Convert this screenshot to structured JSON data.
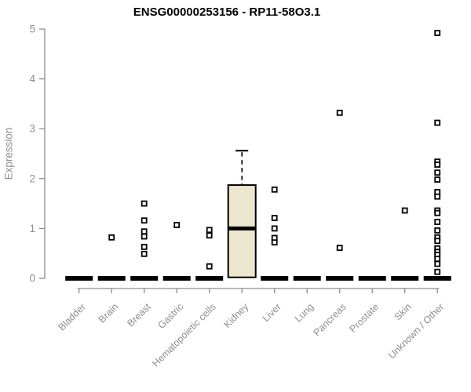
{
  "chart_data": {
    "type": "boxplot",
    "title": "ENSG00000253156 - RP11-58O3.1",
    "xlabel": "",
    "ylabel": "Expression",
    "ylim": [
      0,
      5
    ],
    "yticks": [
      0,
      1,
      2,
      3,
      4,
      5
    ],
    "grid": false,
    "legend": false,
    "categories": [
      "Bladder",
      "Brain",
      "Breast",
      "Gastric",
      "Hematopoietic cells",
      "Kidney",
      "Liver",
      "Lung",
      "Pancreas",
      "Prostate",
      "Skin",
      "Unknown / Other"
    ],
    "series": [
      {
        "category": "Bladder",
        "q1": 0,
        "median": 0,
        "q3": 0,
        "whisker_low": 0,
        "whisker_high": 0,
        "outliers": []
      },
      {
        "category": "Brain",
        "q1": 0,
        "median": 0,
        "q3": 0,
        "whisker_low": 0,
        "whisker_high": 0,
        "outliers": [
          0.82
        ]
      },
      {
        "category": "Breast",
        "q1": 0,
        "median": 0,
        "q3": 0,
        "whisker_low": 0,
        "whisker_high": 0,
        "outliers": [
          1.5,
          1.16,
          0.94,
          0.84,
          0.63,
          0.49
        ]
      },
      {
        "category": "Gastric",
        "q1": 0,
        "median": 0,
        "q3": 0,
        "whisker_low": 0,
        "whisker_high": 0,
        "outliers": [
          1.07
        ]
      },
      {
        "category": "Hematopoietic cells",
        "q1": 0,
        "median": 0,
        "q3": 0,
        "whisker_low": 0,
        "whisker_high": 0,
        "outliers": [
          0.97,
          0.86,
          0.24
        ]
      },
      {
        "category": "Kidney",
        "q1": 0.02,
        "median": 1.0,
        "q3": 1.87,
        "whisker_low": 0.02,
        "whisker_high": 2.56,
        "outliers": []
      },
      {
        "category": "Liver",
        "q1": 0,
        "median": 0,
        "q3": 0,
        "whisker_low": 0,
        "whisker_high": 0,
        "outliers": [
          1.78,
          1.21,
          1.0,
          0.81,
          0.72
        ]
      },
      {
        "category": "Lung",
        "q1": 0,
        "median": 0,
        "q3": 0,
        "whisker_low": 0,
        "whisker_high": 0,
        "outliers": []
      },
      {
        "category": "Pancreas",
        "q1": 0,
        "median": 0,
        "q3": 0,
        "whisker_low": 0,
        "whisker_high": 0,
        "outliers": [
          3.32,
          0.61
        ]
      },
      {
        "category": "Prostate",
        "q1": 0,
        "median": 0,
        "q3": 0,
        "whisker_low": 0,
        "whisker_high": 0,
        "outliers": []
      },
      {
        "category": "Skin",
        "q1": 0,
        "median": 0,
        "q3": 0,
        "whisker_low": 0,
        "whisker_high": 0,
        "outliers": [
          1.36
        ]
      },
      {
        "category": "Unknown / Other",
        "q1": 0,
        "median": 0,
        "q3": 0,
        "whisker_low": 0,
        "whisker_high": 0,
        "outliers": [
          4.92,
          3.12,
          2.34,
          2.28,
          2.12,
          1.98,
          1.73,
          1.64,
          1.36,
          1.31,
          1.13,
          0.96,
          0.82,
          0.75,
          0.6,
          0.53,
          0.47,
          0.39,
          0.29,
          0.13
        ]
      }
    ],
    "colors": {
      "box_fill": "#EDE6CE",
      "box_stroke": "#000000",
      "median": "#000000",
      "outlier_stroke": "#000000",
      "outlier_fill": "#ffffff",
      "axis": "#8c8c8c",
      "tick_label": "#8f8f8f",
      "title": "#000000",
      "background": "#ffffff"
    }
  }
}
